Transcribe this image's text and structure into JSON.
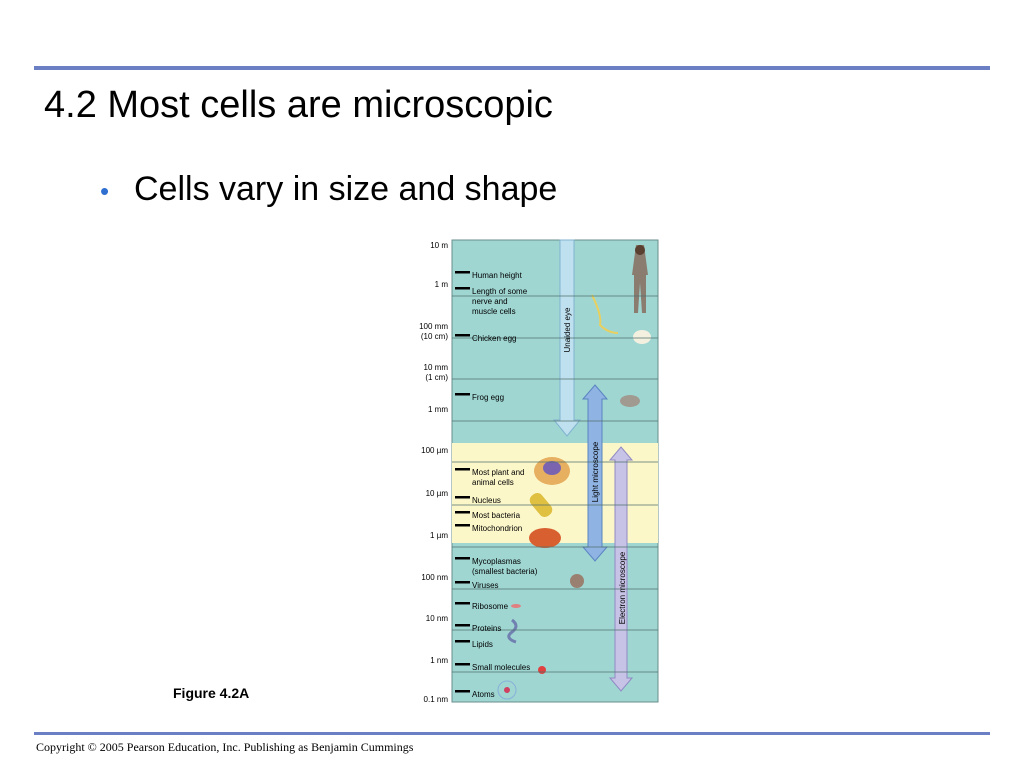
{
  "title": "4.2 Most cells are microscopic",
  "bullets": [
    "Cells vary in size and shape"
  ],
  "figure": {
    "caption": "Figure 4.2A",
    "scale": [
      [
        "10 m"
      ],
      [
        "1 m"
      ],
      [
        "100 mm",
        "(10 cm)"
      ],
      [
        "10 mm",
        "(1 cm)"
      ],
      [
        "1 mm"
      ],
      [
        "100 µm"
      ],
      [
        "10 µm"
      ],
      [
        "1 µm"
      ],
      [
        "100 nm"
      ],
      [
        "10 nm"
      ],
      [
        "1 nm"
      ],
      [
        "0.1 nm"
      ]
    ],
    "items": [
      [
        "Human height"
      ],
      [
        "Length of some",
        "nerve and",
        "muscle cells"
      ],
      [
        "Chicken egg"
      ],
      [
        "Frog egg"
      ],
      [
        "Most plant and",
        "animal cells"
      ],
      [
        "Nucleus"
      ],
      [
        "Most bacteria"
      ],
      [
        "Mitochondrion"
      ],
      [
        "Mycoplasmas",
        "(smallest bacteria)"
      ],
      [
        "Viruses"
      ],
      [
        "Ribosome"
      ],
      [
        "Proteins"
      ],
      [
        "Lipids"
      ],
      [
        "Small molecules"
      ],
      [
        "Atoms"
      ]
    ],
    "ranges": [
      "Unaided eye",
      "Light microscope",
      "Electron microscope"
    ]
  },
  "footer": "Copyright © 2005 Pearson Education, Inc. Publishing as Benjamin Cummings"
}
